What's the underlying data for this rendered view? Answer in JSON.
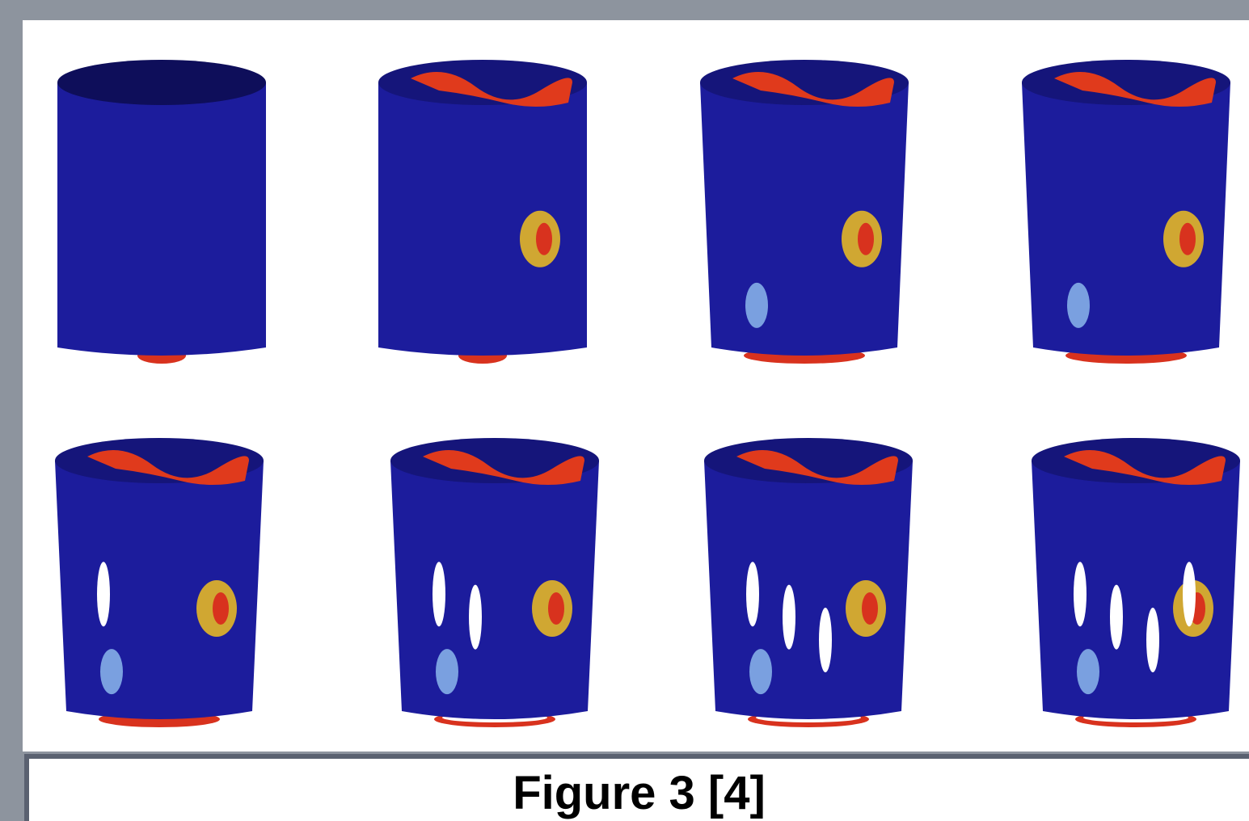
{
  "caption": "Figure 3 [4]"
}
